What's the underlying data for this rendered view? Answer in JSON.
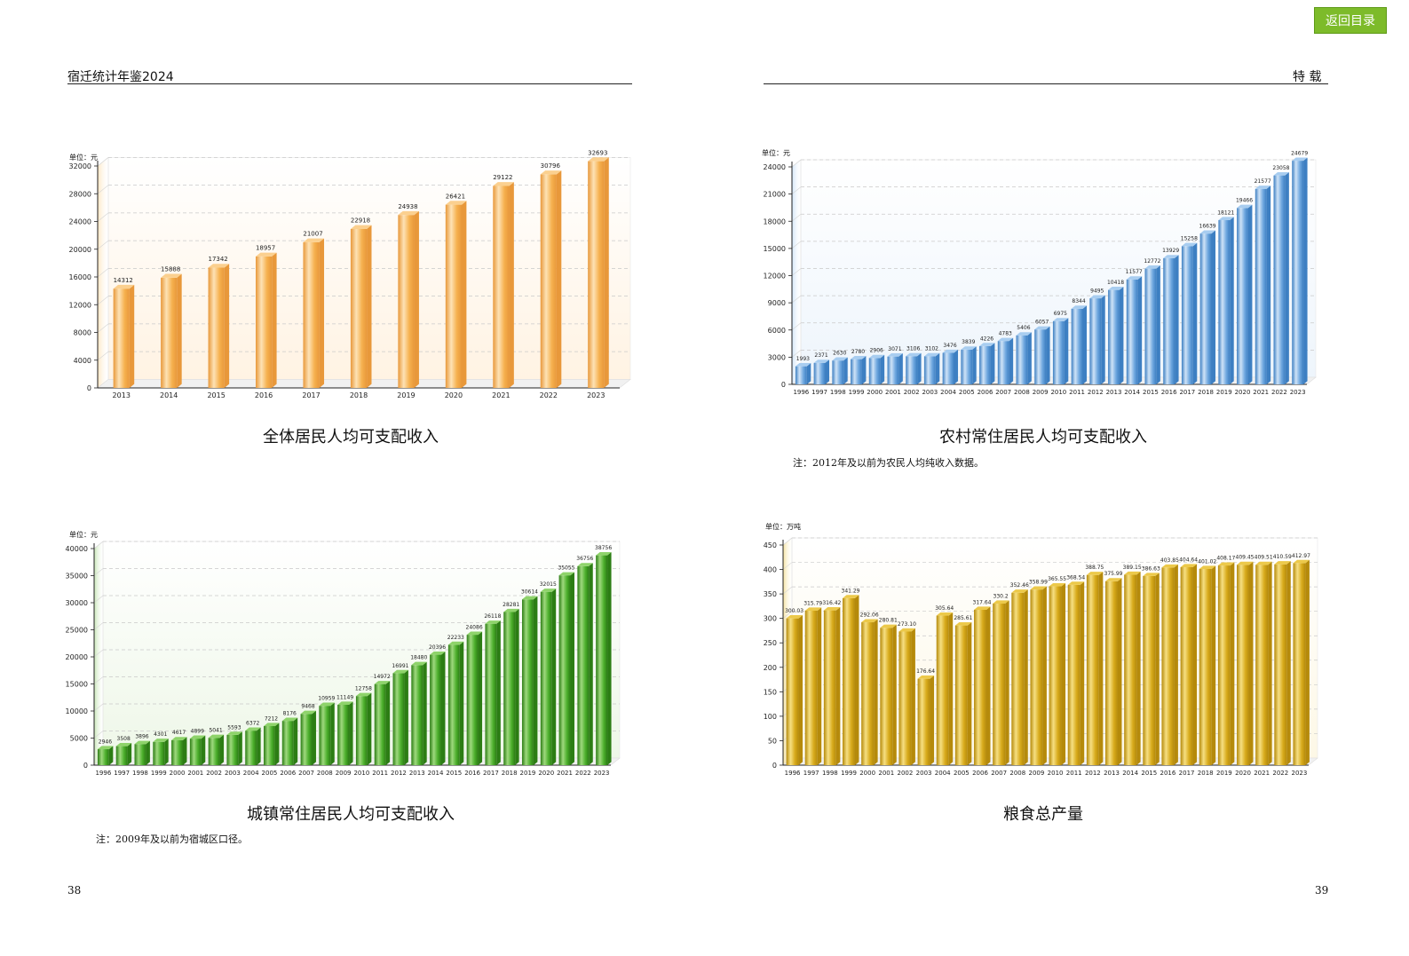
{
  "header": {
    "left_title": "宿迁统计年鉴2024",
    "right_title": "特  载",
    "return_label": "返回目录"
  },
  "page_numbers": {
    "left": "38",
    "right": "39"
  },
  "colors": {
    "orange": "#f6b14f",
    "blue": "#5a9bd8",
    "green": "#3f9e22",
    "gold": "#d6a91a",
    "return_button": "#7dbb2a"
  },
  "chart_data": [
    {
      "id": "total",
      "type": "bar",
      "title": "全体居民人均可支配收入",
      "unit": "单位：元",
      "note": "",
      "ylim": [
        0,
        32000
      ],
      "yticks": [
        0,
        4000,
        8000,
        12000,
        16000,
        20000,
        24000,
        28000,
        32000
      ],
      "categories": [
        "2013",
        "2014",
        "2015",
        "2016",
        "2017",
        "2018",
        "2019",
        "2020",
        "2021",
        "2022",
        "2023"
      ],
      "values": [
        14312,
        15888,
        17342,
        18957,
        21007,
        22918,
        24938,
        26421,
        29122,
        30796,
        32693
      ],
      "labels": [
        "14312",
        "15888",
        "17342",
        "18957",
        "21007",
        "22918",
        "24938",
        "26421",
        "29122",
        "30796",
        "32693"
      ],
      "grid": true
    },
    {
      "id": "rural",
      "type": "bar",
      "title": "农村常住居民人均可支配收入",
      "unit": "单位：元",
      "note": "注：2012年及以前为农民人均纯收入数据。",
      "ylim": [
        0,
        24000
      ],
      "yticks": [
        0,
        3000,
        6000,
        9000,
        12000,
        15000,
        18000,
        21000,
        24000
      ],
      "categories": [
        "1996",
        "1997",
        "1998",
        "1999",
        "2000",
        "2001",
        "2002",
        "2003",
        "2004",
        "2005",
        "2006",
        "2007",
        "2008",
        "2009",
        "2010",
        "2011",
        "2012",
        "2013",
        "2014",
        "2015",
        "2016",
        "2017",
        "2018",
        "2019",
        "2020",
        "2021",
        "2022",
        "2023"
      ],
      "values": [
        1993,
        2371,
        2630,
        2780,
        2906,
        3071,
        3106,
        3102,
        3476,
        3839,
        4226,
        4783,
        5406,
        6057,
        6975,
        8344,
        9495,
        10418,
        11577,
        12772,
        13929,
        15258,
        16639,
        18121,
        19466,
        21577,
        23058,
        24679
      ],
      "labels": [
        "1993",
        "2371",
        "2630",
        "2780",
        "2906",
        "3071",
        "3106",
        "3102",
        "3476",
        "3839",
        "4226",
        "4783",
        "5406",
        "6057",
        "6975",
        "8344",
        "9495",
        "10418",
        "11577",
        "12772",
        "13929",
        "15258",
        "16639",
        "18121",
        "19466",
        "21577",
        "23058",
        "24679"
      ],
      "grid": true
    },
    {
      "id": "urban",
      "type": "bar",
      "title": "城镇常住居民人均可支配收入",
      "unit": "单位：元",
      "note": "注：2009年及以前为宿城区口径。",
      "ylim": [
        0,
        40000
      ],
      "yticks": [
        0,
        5000,
        10000,
        15000,
        20000,
        25000,
        30000,
        35000,
        40000
      ],
      "categories": [
        "1996",
        "1997",
        "1998",
        "1999",
        "2000",
        "2001",
        "2002",
        "2003",
        "2004",
        "2005",
        "2006",
        "2007",
        "2008",
        "2009",
        "2010",
        "2011",
        "2012",
        "2013",
        "2014",
        "2015",
        "2016",
        "2017",
        "2018",
        "2019",
        "2020",
        "2021",
        "2022",
        "2023"
      ],
      "values": [
        2946,
        3508,
        3896,
        4301,
        4617,
        4899,
        5041,
        5593,
        6372,
        7212,
        8176,
        9468,
        10959,
        11149,
        12758,
        14972,
        16991,
        18480,
        20396,
        22233,
        24086,
        26118,
        28281,
        30614,
        32015,
        35055,
        36756,
        38756
      ],
      "labels": [
        "2946",
        "3508",
        "3896",
        "4301",
        "4617",
        "4899",
        "5041",
        "5593",
        "6372",
        "7212",
        "8176",
        "9468",
        "10959",
        "11149",
        "12758",
        "14972",
        "16991",
        "18480",
        "20396",
        "22233",
        "24086",
        "26118",
        "28281",
        "30614",
        "32015",
        "35055",
        "36756",
        "38756"
      ],
      "grid": true
    },
    {
      "id": "grain",
      "type": "bar",
      "title": "粮食总产量",
      "unit": "单位：万吨",
      "note": "",
      "ylim": [
        0,
        450
      ],
      "yticks": [
        0,
        50,
        100,
        150,
        200,
        250,
        300,
        350,
        400,
        450
      ],
      "categories": [
        "1996",
        "1997",
        "1998",
        "1999",
        "2000",
        "2001",
        "2002",
        "2003",
        "2004",
        "2005",
        "2006",
        "2007",
        "2008",
        "2009",
        "2010",
        "2011",
        "2012",
        "2013",
        "2014",
        "2015",
        "2016",
        "2017",
        "2018",
        "2019",
        "2020",
        "2021",
        "2022",
        "2023"
      ],
      "values": [
        300.03,
        315.79,
        316.42,
        341.29,
        292.06,
        280.81,
        273.1,
        176.64,
        305.64,
        285.61,
        317.64,
        330.2,
        352.46,
        358.99,
        365.55,
        368.54,
        388.75,
        375.99,
        389.15,
        386.63,
        403.85,
        404.64,
        401.02,
        408.17,
        409.45,
        409.51,
        410.59,
        412.97
      ],
      "labels": [
        "300.03",
        "315.79",
        "316.42",
        "341.29",
        "292.06",
        "280.81",
        "273.10",
        "176.64",
        "305.64",
        "285.61",
        "317.64",
        "330.2",
        "352.46",
        "358.99",
        "365.55",
        "368.54",
        "388.75",
        "375.99",
        "389.15",
        "386.63",
        "403.85",
        "404.64",
        "401.02",
        "408.17",
        "409.45",
        "409.51",
        "410.59",
        "412.97"
      ],
      "grid": true
    }
  ]
}
